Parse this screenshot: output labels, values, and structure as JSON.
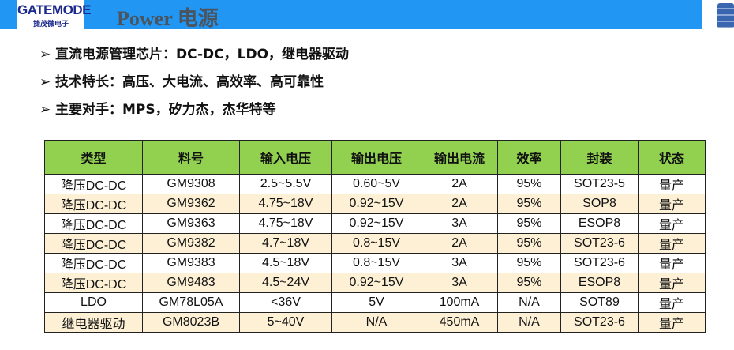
{
  "header": {
    "logo_text": "GATEMODE",
    "logo_subtext": "捷茂微电子",
    "title": "Power 电源",
    "accent": "#2196f3"
  },
  "bullets": [
    "直流电源管理芯片：DC-DC，LDO，继电器驱动",
    "技术特长：高压、大电流、高效率、高可靠性",
    "主要对手：MPS，矽力杰，杰华特等"
  ],
  "table": {
    "headers": [
      "类型",
      "料号",
      "输入电压",
      "输出电压",
      "输出电流",
      "效率",
      "封装",
      "状态"
    ],
    "rows": [
      [
        "降压DC-DC",
        "GM9308",
        "2.5~5.5V",
        "0.60~5V",
        "2A",
        "95%",
        "SOT23-5",
        "量产"
      ],
      [
        "降压DC-DC",
        "GM9362",
        "4.75~18V",
        "0.92~15V",
        "2A",
        "95%",
        "SOP8",
        "量产"
      ],
      [
        "降压DC-DC",
        "GM9363",
        "4.75~18V",
        "0.92~15V",
        "3A",
        "95%",
        "ESOP8",
        "量产"
      ],
      [
        "降压DC-DC",
        "GM9382",
        "4.7~18V",
        "0.8~15V",
        "2A",
        "95%",
        "SOT23-6",
        "量产"
      ],
      [
        "降压DC-DC",
        "GM9383",
        "4.5~18V",
        "0.8~15V",
        "3A",
        "95%",
        "SOT23-6",
        "量产"
      ],
      [
        "降压DC-DC",
        "GM9483",
        "4.5~24V",
        "0.92~15V",
        "3A",
        "95%",
        "ESOP8",
        "量产"
      ],
      [
        "LDO",
        "GM78L05A",
        "<36V",
        "5V",
        "100mA",
        "N/A",
        "SOT89",
        "量产"
      ],
      [
        "继电器驱动",
        "GM8023B",
        "5~40V",
        "N/A",
        "450mA",
        "N/A",
        "SOT23-6",
        "量产"
      ]
    ]
  }
}
